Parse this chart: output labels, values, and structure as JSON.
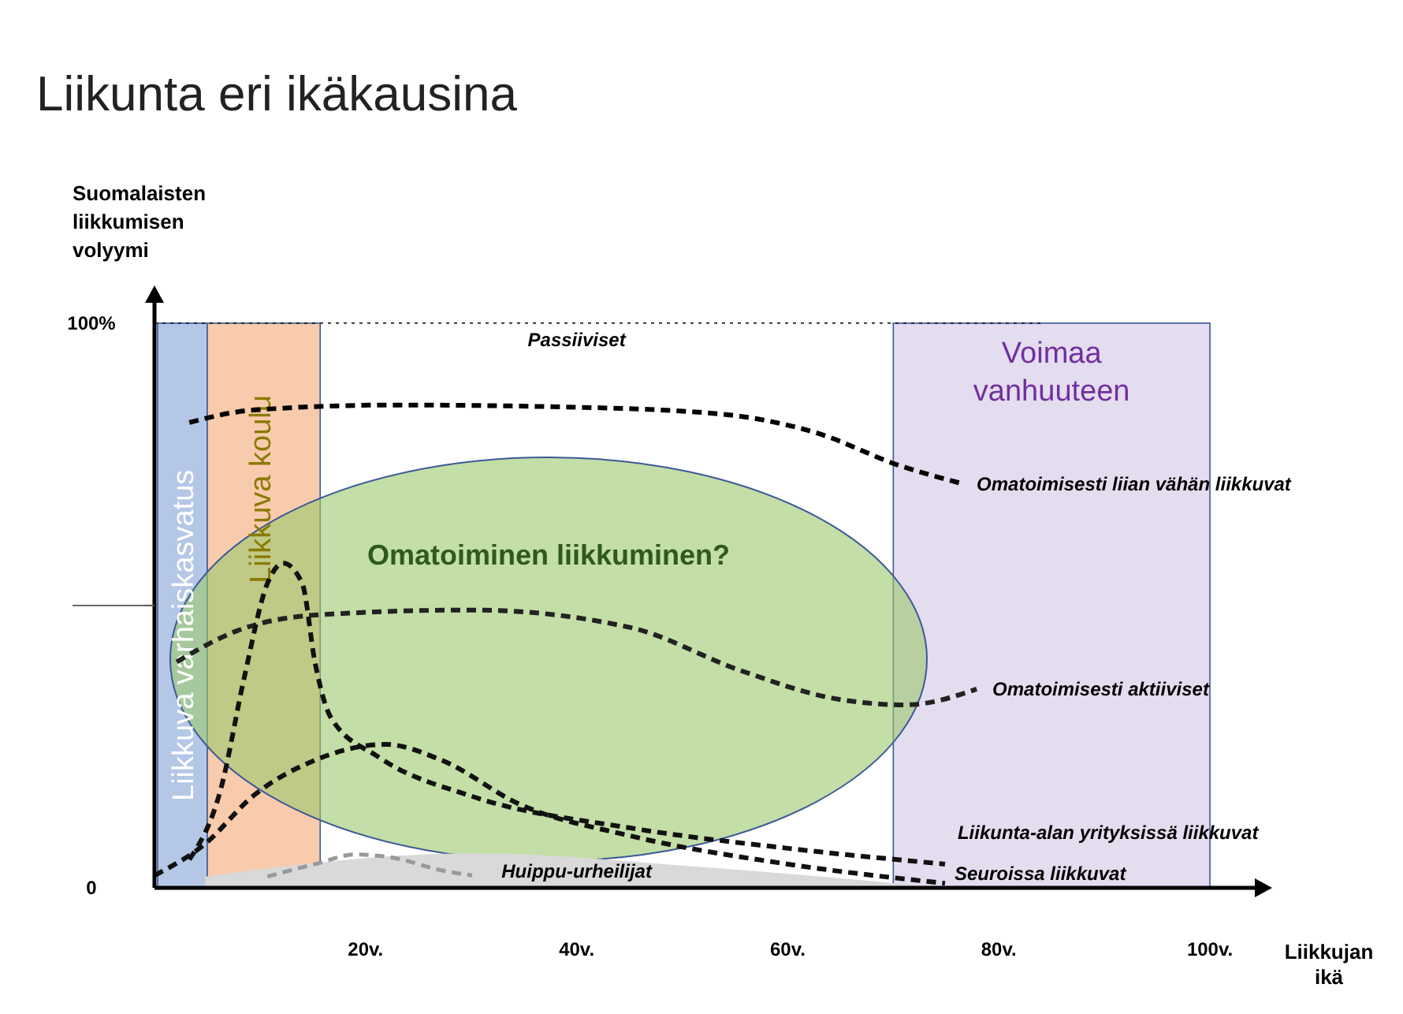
{
  "chart_data": {
    "type": "line",
    "title": "Liikunta eri ikäkausina",
    "xlabel": "Liikkujan ikä",
    "ylabel": "Suomalaisten liikkumisen volyymi",
    "xlim": [
      0,
      105
    ],
    "ylim": [
      0,
      105
    ],
    "xticks": [
      {
        "value": 20,
        "label": "20v."
      },
      {
        "value": 40,
        "label": "40v."
      },
      {
        "value": 60,
        "label": "60v."
      },
      {
        "value": 80,
        "label": "80v."
      },
      {
        "value": 100,
        "label": "100v."
      }
    ],
    "yticks": [
      0,
      {
        "value": 50,
        "label": null
      },
      {
        "value": 100,
        "label": "100%"
      }
    ],
    "line_style": "dashed",
    "series": [
      {
        "name": "Omatoimisesti liian vähän liikkuvat",
        "color": "#000000",
        "x": [
          3.3,
          9.3,
          22.7,
          37.6,
          52.5,
          63,
          70.4,
          76.7
        ],
        "values": [
          82.4,
          84.6,
          85.5,
          85.2,
          84.1,
          80.4,
          74.9,
          71.5
        ]
      },
      {
        "name": "Omatoimisesti aktiiviset",
        "color": "#222222",
        "x": [
          2.1,
          7.8,
          15.2,
          30.1,
          45.1,
          55.5,
          64.5,
          71.2,
          77.9
        ],
        "values": [
          40,
          45.5,
          48.3,
          49.2,
          46.1,
          38.5,
          33.5,
          32.4,
          35.2
        ]
      },
      {
        "name": "Liikunta-alan yrityksissä liikkuvat",
        "color": "#111111",
        "x": [
          3.3,
          6.3,
          8.5,
          10.7,
          12.2,
          14,
          15.2,
          16.7,
          21.2,
          30.1,
          45.1,
          60,
          74.9
        ],
        "values": [
          5,
          17.6,
          37.2,
          53.9,
          57.5,
          53.9,
          40,
          30.2,
          23.2,
          16.2,
          10.6,
          7,
          4.2
        ]
      },
      {
        "name": "Seuroissa liikkuvat",
        "color": "#111111",
        "x": [
          0,
          4.8,
          9.3,
          15.2,
          21.9,
          27.2,
          34.6,
          45.1,
          60,
          74.9
        ],
        "values": [
          2.2,
          7.8,
          16.2,
          22.6,
          25.4,
          22.6,
          14.8,
          9.2,
          4.2,
          0.8
        ]
      },
      {
        "type": "area",
        "color": "#d9d9d9",
        "x": [
          4.8,
          30.1,
          52.5,
          74.9
        ],
        "values": [
          2,
          6.1,
          3.6,
          0
        ]
      },
      {
        "color": "#999999",
        "x": [
          10.7,
          15.2,
          19,
          22.7,
          27.2,
          30.1
        ],
        "values": [
          2,
          4.2,
          5.9,
          5.3,
          3.1,
          2.2
        ]
      }
    ],
    "bands": [
      {
        "axis": "x",
        "from": 0.3,
        "to": 5,
        "label": "Liikkuva varhaiskasvatus",
        "color": "#b4c7e7"
      },
      {
        "axis": "x",
        "from": 5,
        "to": 15.7,
        "label": "Liikkuva koulu",
        "color": "#f8cbad"
      },
      {
        "axis": "x",
        "from": 70,
        "to": 100,
        "label": "Voimaa vanhuuteen",
        "color": "#e4dcef"
      }
    ],
    "ref_lines": [
      {
        "axis": "y",
        "value": 100,
        "line_style": "dotted",
        "color": "#000000"
      }
    ],
    "annotations": [
      "Passiiviset",
      "Huippu-urheilijat",
      "Omatoiminen liikkuminen?"
    ]
  }
}
